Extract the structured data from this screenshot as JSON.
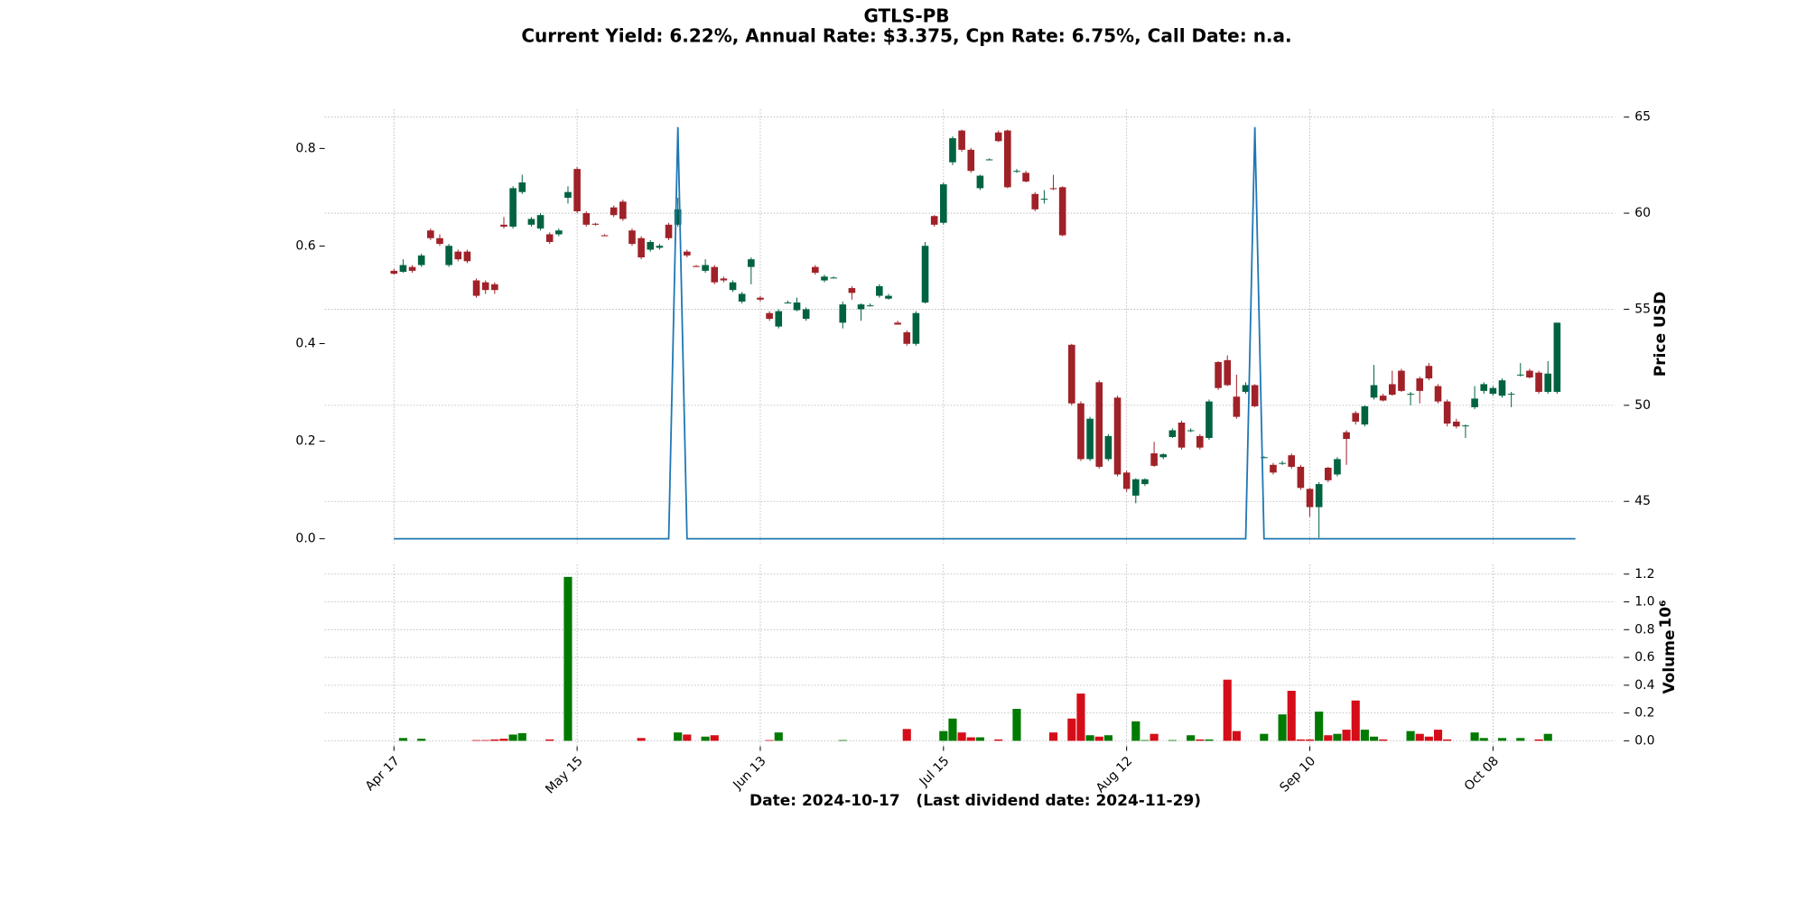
{
  "chart_data": {
    "type": "candlestick",
    "title": "GTLS-PB",
    "subtitle": "Current Yield: 6.22%, Annual Rate: $3.375, Cpn Rate: 6.75%, Call Date: n.a.",
    "xlabel": "Date: 2024-10-17   (Last dividend date: 2024-11-29)",
    "ylabel": "Price USD",
    "volume_label": "Volume",
    "volume_scale_label": "10⁶",
    "xlim": [
      -7.55,
      133.3
    ],
    "xticks": [
      {
        "value": 0,
        "label": "Apr 17"
      },
      {
        "value": 20,
        "label": "May 15"
      },
      {
        "value": 40,
        "label": "Jun 13"
      },
      {
        "value": 60,
        "label": "Jul 15"
      },
      {
        "value": 80,
        "label": "Aug 12"
      },
      {
        "value": 100,
        "label": "Sep 10"
      },
      {
        "value": 120,
        "label": "Oct 08"
      }
    ],
    "ylim": [
      42.8,
      65.4
    ],
    "yticks": [
      45,
      50,
      55,
      60,
      65
    ],
    "y2lim": [
      -0.01,
      0.88
    ],
    "y2ticks": [
      {
        "value": 0,
        "label": "0.0"
      },
      0.2,
      0.4,
      0.6,
      0.8
    ],
    "vlim": [
      -0.04,
      1.27
    ],
    "vticks": [
      {
        "value": 0,
        "label": "0.0"
      },
      0.2,
      0.4,
      0.6,
      0.8,
      {
        "value": 1,
        "label": "1.0"
      },
      1.2
    ],
    "grid": true,
    "up_color": "#006340",
    "down_color": "#a02128",
    "volume_up_color": "#007a00",
    "volume_down_color": "#d50d18",
    "line_color": "#1f77b4",
    "ohlc": [
      [
        57.0,
        57.1,
        56.8,
        56.85
      ],
      [
        56.95,
        57.6,
        56.9,
        57.3
      ],
      [
        57.2,
        57.3,
        56.9,
        57.0
      ],
      [
        57.3,
        57.9,
        57.2,
        57.8
      ],
      [
        59.1,
        59.2,
        58.6,
        58.7
      ],
      [
        58.7,
        58.9,
        58.3,
        58.4
      ],
      [
        57.3,
        58.4,
        57.2,
        58.3
      ],
      [
        58.0,
        58.1,
        57.5,
        57.6
      ],
      [
        58.0,
        58.1,
        57.4,
        57.5
      ],
      [
        56.5,
        56.6,
        55.6,
        55.7
      ],
      [
        56.4,
        56.5,
        55.8,
        56.0
      ],
      [
        56.3,
        56.4,
        55.8,
        56.0
      ],
      [
        59.4,
        59.8,
        59.2,
        59.3
      ],
      [
        59.3,
        61.4,
        59.2,
        61.3
      ],
      [
        61.1,
        62.0,
        61.0,
        61.6
      ],
      [
        59.4,
        59.8,
        59.3,
        59.7
      ],
      [
        59.2,
        60.0,
        59.1,
        59.9
      ],
      [
        58.9,
        59.0,
        58.4,
        58.5
      ],
      [
        58.9,
        59.2,
        58.8,
        59.1
      ],
      [
        60.8,
        61.4,
        60.5,
        61.1
      ],
      [
        62.3,
        62.4,
        60.0,
        60.1
      ],
      [
        60.0,
        60.1,
        59.3,
        59.4
      ],
      [
        59.45,
        59.5,
        59.35,
        59.4
      ],
      [
        58.85,
        58.9,
        58.8,
        58.8
      ],
      [
        60.3,
        60.4,
        59.8,
        59.9
      ],
      [
        60.6,
        60.7,
        59.6,
        59.7
      ],
      [
        59.1,
        59.2,
        58.3,
        58.4
      ],
      [
        58.7,
        58.8,
        57.6,
        57.7
      ],
      [
        58.1,
        58.6,
        58.0,
        58.5
      ],
      [
        58.2,
        58.4,
        58.1,
        58.3
      ],
      [
        59.4,
        59.5,
        58.6,
        58.7
      ],
      [
        59.4,
        60.8,
        59.3,
        60.2
      ],
      [
        58.0,
        58.1,
        57.7,
        57.8
      ],
      [
        57.25,
        57.3,
        57.2,
        57.2
      ],
      [
        57.0,
        57.6,
        56.9,
        57.3
      ],
      [
        57.2,
        57.3,
        56.3,
        56.4
      ],
      [
        56.6,
        56.7,
        56.4,
        56.5
      ],
      [
        56.0,
        56.5,
        55.9,
        56.4
      ],
      [
        55.4,
        55.9,
        55.3,
        55.8
      ],
      [
        57.2,
        57.7,
        56.3,
        57.6
      ],
      [
        55.6,
        55.7,
        55.4,
        55.5
      ],
      [
        54.8,
        54.9,
        54.4,
        54.5
      ],
      [
        54.1,
        55.0,
        54.0,
        54.9
      ],
      [
        55.35,
        55.45,
        55.3,
        55.35
      ],
      [
        54.95,
        55.6,
        54.9,
        55.35
      ],
      [
        54.5,
        55.1,
        54.4,
        55.0
      ],
      [
        57.2,
        57.3,
        56.8,
        56.9
      ],
      [
        56.5,
        56.8,
        56.4,
        56.7
      ],
      [
        56.65,
        56.7,
        56.6,
        56.65
      ],
      [
        54.3,
        55.4,
        54.0,
        55.25
      ],
      [
        56.1,
        56.2,
        55.5,
        55.85
      ],
      [
        55.0,
        55.3,
        54.4,
        55.25
      ],
      [
        55.2,
        55.3,
        55.15,
        55.2
      ],
      [
        55.7,
        56.3,
        55.6,
        56.2
      ],
      [
        55.55,
        55.8,
        55.5,
        55.7
      ],
      [
        54.3,
        54.4,
        54.2,
        54.2
      ],
      [
        53.8,
        53.9,
        53.1,
        53.2
      ],
      [
        53.2,
        54.9,
        53.1,
        54.8
      ],
      [
        55.35,
        58.5,
        55.3,
        58.3
      ],
      [
        59.85,
        59.9,
        59.3,
        59.4
      ],
      [
        59.5,
        61.6,
        59.4,
        61.5
      ],
      [
        62.65,
        64.0,
        62.5,
        63.9
      ],
      [
        64.3,
        64.35,
        63.2,
        63.3
      ],
      [
        63.3,
        63.4,
        62.1,
        62.2
      ],
      [
        61.3,
        62.0,
        61.2,
        61.95
      ],
      [
        62.8,
        62.85,
        62.75,
        62.8
      ],
      [
        64.2,
        64.3,
        63.7,
        63.75
      ],
      [
        64.3,
        64.35,
        61.3,
        61.35
      ],
      [
        62.2,
        62.3,
        62.1,
        62.2
      ],
      [
        62.1,
        62.2,
        61.6,
        61.65
      ],
      [
        61.0,
        61.1,
        60.1,
        60.2
      ],
      [
        60.75,
        61.2,
        60.5,
        60.75
      ],
      [
        61.3,
        62.0,
        61.2,
        61.25
      ],
      [
        61.35,
        61.4,
        58.8,
        58.85
      ],
      [
        53.15,
        53.2,
        50.0,
        50.1
      ],
      [
        50.1,
        50.2,
        47.1,
        47.2
      ],
      [
        47.2,
        49.4,
        47.1,
        49.3
      ],
      [
        51.2,
        51.3,
        46.7,
        46.8
      ],
      [
        47.2,
        48.5,
        47.1,
        48.4
      ],
      [
        50.4,
        50.5,
        46.3,
        46.4
      ],
      [
        46.5,
        46.6,
        45.5,
        45.65
      ],
      [
        45.3,
        46.2,
        44.9,
        46.15
      ],
      [
        45.9,
        46.2,
        45.8,
        46.15
      ],
      [
        47.5,
        48.1,
        46.8,
        46.85
      ],
      [
        47.3,
        47.5,
        47.2,
        47.45
      ],
      [
        48.35,
        48.8,
        48.3,
        48.7
      ],
      [
        49.1,
        49.2,
        47.7,
        47.8
      ],
      [
        48.7,
        48.8,
        48.6,
        48.7
      ],
      [
        48.4,
        48.5,
        47.7,
        47.8
      ],
      [
        48.3,
        50.3,
        48.2,
        50.2
      ],
      [
        52.25,
        52.3,
        50.8,
        50.9
      ],
      [
        52.35,
        52.6,
        51.0,
        51.05
      ],
      [
        50.45,
        51.6,
        49.3,
        49.4
      ],
      [
        50.7,
        51.2,
        50.6,
        51.05
      ],
      [
        51.05,
        51.1,
        49.9,
        49.95
      ],
      [
        47.3,
        47.35,
        47.25,
        47.3
      ],
      [
        46.9,
        47.0,
        46.4,
        46.5
      ],
      [
        47.0,
        47.1,
        46.9,
        47.0
      ],
      [
        47.4,
        47.5,
        46.7,
        46.8
      ],
      [
        46.8,
        46.9,
        45.6,
        45.7
      ],
      [
        45.65,
        45.7,
        44.2,
        44.7
      ],
      [
        44.7,
        46.0,
        43.1,
        45.9
      ],
      [
        46.75,
        46.8,
        46.0,
        46.1
      ],
      [
        46.4,
        47.3,
        46.3,
        47.2
      ],
      [
        48.6,
        48.7,
        46.9,
        48.25
      ],
      [
        49.6,
        49.7,
        49.0,
        49.15
      ],
      [
        49.0,
        50.0,
        48.9,
        49.95
      ],
      [
        50.4,
        52.1,
        50.3,
        51.05
      ],
      [
        50.5,
        50.6,
        50.2,
        50.25
      ],
      [
        51.1,
        51.8,
        50.5,
        50.55
      ],
      [
        51.8,
        51.9,
        50.7,
        50.75
      ],
      [
        50.6,
        50.7,
        50.0,
        50.6
      ],
      [
        51.4,
        51.5,
        50.1,
        50.75
      ],
      [
        52.05,
        52.2,
        51.3,
        51.4
      ],
      [
        51.0,
        51.1,
        50.1,
        50.2
      ],
      [
        50.2,
        50.3,
        48.9,
        49.05
      ],
      [
        49.15,
        49.3,
        48.8,
        48.9
      ],
      [
        48.95,
        49.0,
        48.3,
        48.95
      ],
      [
        49.9,
        51.0,
        49.8,
        50.35
      ],
      [
        50.75,
        51.2,
        50.6,
        51.1
      ],
      [
        50.6,
        51.0,
        50.5,
        50.9
      ],
      [
        50.5,
        51.4,
        50.4,
        51.3
      ],
      [
        50.6,
        50.7,
        49.9,
        50.6
      ],
      [
        51.6,
        52.2,
        51.5,
        51.6
      ],
      [
        51.8,
        51.9,
        51.4,
        51.45
      ],
      [
        51.7,
        51.8,
        50.6,
        50.7
      ],
      [
        50.7,
        52.3,
        50.6,
        51.65
      ],
      [
        50.7,
        54.3,
        50.6,
        54.3
      ]
    ],
    "dividend": [
      0,
      0,
      0,
      0,
      0,
      0,
      0,
      0,
      0,
      0,
      0,
      0,
      0,
      0,
      0,
      0,
      0,
      0,
      0,
      0,
      0,
      0,
      0,
      0,
      0,
      0,
      0,
      0,
      0,
      0,
      0,
      0.84375,
      0,
      0,
      0,
      0,
      0,
      0,
      0,
      0,
      0,
      0,
      0,
      0,
      0,
      0,
      0,
      0,
      0,
      0,
      0,
      0,
      0,
      0,
      0,
      0,
      0,
      0,
      0,
      0,
      0,
      0,
      0,
      0,
      0,
      0,
      0,
      0,
      0,
      0,
      0,
      0,
      0,
      0,
      0,
      0,
      0,
      0,
      0,
      0,
      0,
      0,
      0,
      0,
      0,
      0,
      0,
      0,
      0,
      0,
      0,
      0,
      0,
      0,
      0.84375,
      0,
      0,
      0,
      0,
      0,
      0,
      0,
      0,
      0,
      0,
      0,
      0,
      0,
      0,
      0,
      0,
      0,
      0,
      0,
      0,
      0,
      0,
      0,
      0,
      0,
      0,
      0,
      0,
      0,
      0,
      0,
      0,
      0,
      0,
      0
    ],
    "volume": [
      0,
      0.02,
      0,
      0.015,
      0,
      0,
      0,
      0,
      0,
      0.005,
      0.005,
      0.01,
      0.015,
      0.045,
      0.055,
      0,
      0,
      0.01,
      0,
      1.18,
      0,
      0,
      0,
      0,
      0,
      0,
      0,
      0.02,
      0,
      0,
      0,
      0.06,
      0.045,
      0,
      0.03,
      0.04,
      0,
      0,
      0,
      0,
      0,
      0.005,
      0.06,
      0,
      0,
      0,
      0,
      0,
      0,
      0.005,
      0,
      0,
      0,
      0,
      0,
      0,
      0.085,
      0,
      0,
      0,
      0.07,
      0.16,
      0.06,
      0.025,
      0.025,
      0,
      0.01,
      0,
      0.23,
      0,
      0,
      0,
      0.06,
      0,
      0.16,
      0.34,
      0.04,
      0.03,
      0.04,
      0,
      0,
      0.14,
      0.005,
      0.05,
      0,
      0.005,
      0,
      0.04,
      0.01,
      0.01,
      0,
      0.44,
      0.07,
      0,
      0,
      0.05,
      0,
      0.19,
      0.36,
      0.01,
      0.01,
      0.21,
      0.04,
      0.05,
      0.08,
      0.29,
      0.08,
      0.03,
      0.01,
      0,
      0,
      0.07,
      0.05,
      0.03,
      0.08,
      0.01,
      0,
      0,
      0.06,
      0.02,
      0,
      0.02,
      0,
      0.02,
      0,
      0.01,
      0.05,
      0
    ]
  }
}
